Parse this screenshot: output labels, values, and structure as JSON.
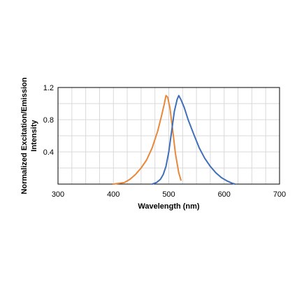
{
  "chart_data": {
    "type": "line",
    "title": "",
    "xlabel": "Wavelength (nm)",
    "ylabel": "Normalized Excitation/Emission Intensity",
    "ylabel_lines": [
      "Normalized Excitation/Emission",
      "Intensity"
    ],
    "xlim": [
      300,
      700
    ],
    "ylim": [
      0,
      1.2
    ],
    "xticks": [
      300,
      400,
      500,
      600,
      700
    ],
    "xtick_labels": [
      "300",
      "400",
      "500",
      "600",
      "700"
    ],
    "yticks": [
      0.4,
      0.8,
      1.2
    ],
    "ytick_labels": [
      "0.4",
      "0.8",
      "1.2"
    ],
    "grid": true,
    "legend": "none",
    "series": [
      {
        "color": "#e8883a",
        "x": [
          400,
          410,
          420,
          430,
          440,
          450,
          460,
          470,
          480,
          487,
          492,
          495,
          498,
          502,
          507,
          512,
          518,
          522
        ],
        "y": [
          0.0,
          0.01,
          0.02,
          0.06,
          0.12,
          0.2,
          0.3,
          0.45,
          0.66,
          0.85,
          1.0,
          1.1,
          1.08,
          0.95,
          0.68,
          0.38,
          0.14,
          0.05
        ]
      },
      {
        "color": "#3f6fb8",
        "x": [
          470,
          478,
          485,
          490,
          495,
          500,
          505,
          510,
          515,
          518,
          522,
          528,
          535,
          545,
          555,
          565,
          575,
          585,
          595,
          605,
          615,
          620
        ],
        "y": [
          0.0,
          0.02,
          0.06,
          0.12,
          0.22,
          0.4,
          0.65,
          0.9,
          1.05,
          1.1,
          1.05,
          0.95,
          0.8,
          0.62,
          0.45,
          0.32,
          0.22,
          0.14,
          0.08,
          0.04,
          0.01,
          0.0
        ]
      }
    ]
  }
}
